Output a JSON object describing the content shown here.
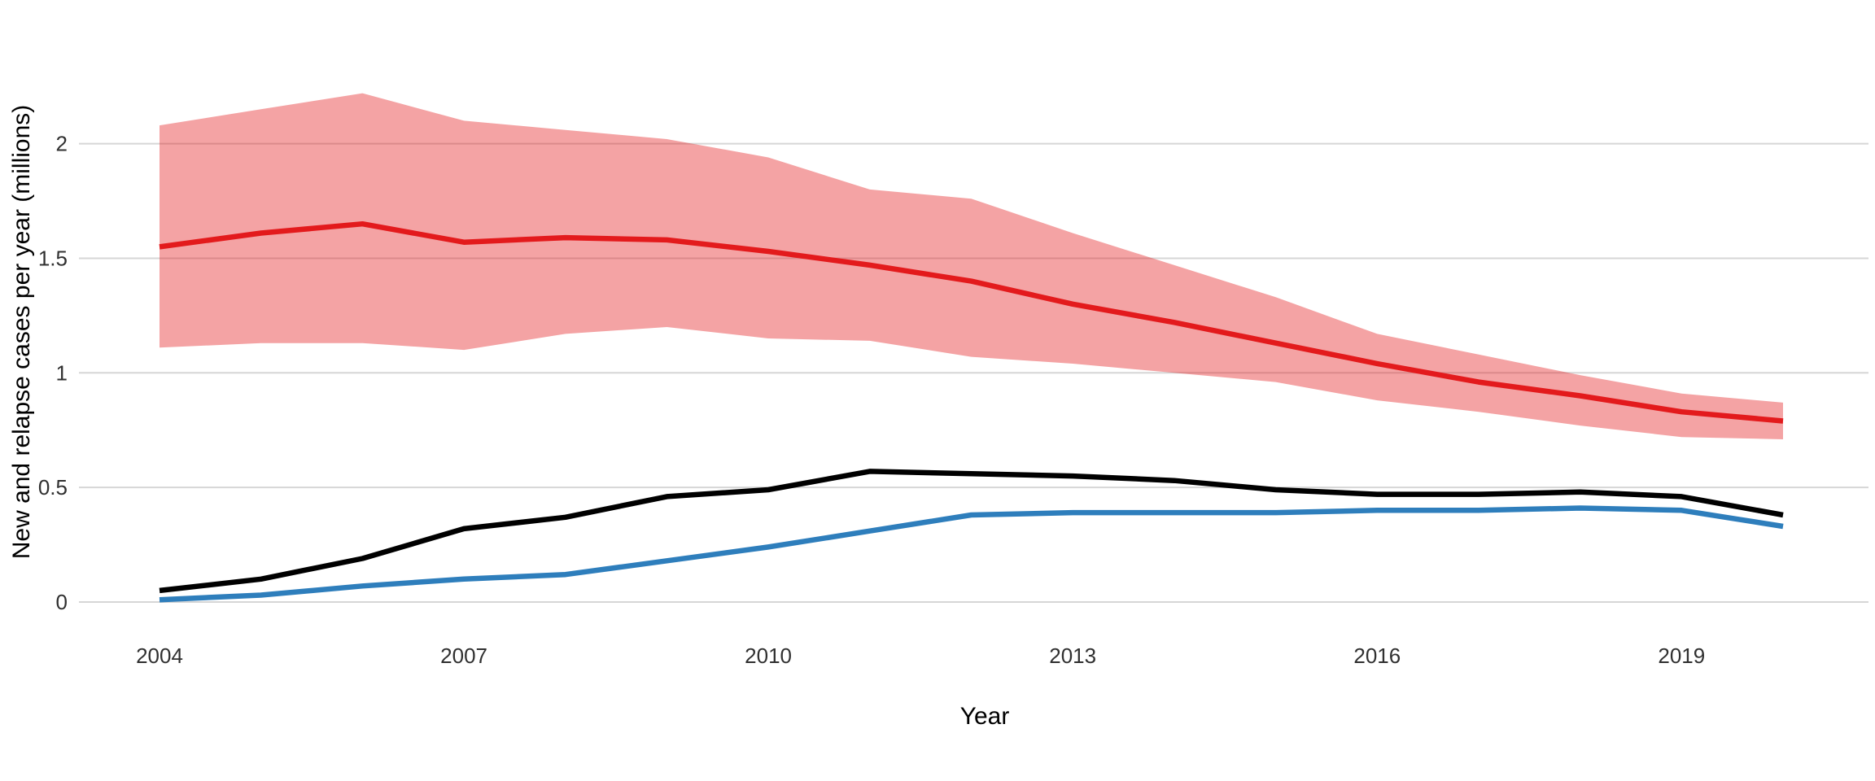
{
  "chart_data": {
    "type": "line",
    "xlabel": "Year",
    "ylabel": "New and relapse cases per year (millions)",
    "x": [
      2004,
      2005,
      2006,
      2007,
      2008,
      2009,
      2010,
      2011,
      2012,
      2013,
      2014,
      2015,
      2016,
      2017,
      2018,
      2019,
      2020
    ],
    "x_ticks": [
      2004,
      2007,
      2010,
      2013,
      2016,
      2019
    ],
    "x_tick_labels": [
      "2004",
      "2007",
      "2010",
      "2013",
      "2016",
      "2019"
    ],
    "y_ticks": [
      0,
      0.5,
      1,
      1.5,
      2
    ],
    "y_tick_labels": [
      "0",
      "0.5",
      "1",
      "1.5",
      "2"
    ],
    "xlim": [
      2003.2,
      2020.85
    ],
    "ylim": [
      0,
      2.35
    ],
    "grid": "horizontal gridlines only, light gray, no axis lines, no tick marks",
    "legend": "none",
    "series": [
      {
        "id": "red-line-with-ci-band",
        "color": "#E31A1C",
        "band_color": "#E31A1C",
        "band_opacity": 0.4,
        "values": [
          1.55,
          1.61,
          1.65,
          1.57,
          1.59,
          1.58,
          1.53,
          1.47,
          1.4,
          1.3,
          1.22,
          1.13,
          1.04,
          0.96,
          0.9,
          0.83,
          0.79
        ],
        "band_upper": [
          2.08,
          2.15,
          2.22,
          2.1,
          2.06,
          2.02,
          1.94,
          1.8,
          1.76,
          1.61,
          1.47,
          1.33,
          1.17,
          1.08,
          0.99,
          0.91,
          0.87
        ],
        "band_lower": [
          1.11,
          1.13,
          1.13,
          1.1,
          1.17,
          1.2,
          1.15,
          1.14,
          1.07,
          1.04,
          1.0,
          0.96,
          0.88,
          0.83,
          0.77,
          0.72,
          0.71
        ]
      },
      {
        "id": "black-line",
        "color": "#000000",
        "values": [
          0.05,
          0.1,
          0.19,
          0.32,
          0.37,
          0.46,
          0.49,
          0.57,
          0.56,
          0.55,
          0.53,
          0.49,
          0.47,
          0.47,
          0.48,
          0.46,
          0.38
        ]
      },
      {
        "id": "blue-line",
        "color": "#2E7EBC",
        "values": [
          0.01,
          0.03,
          0.07,
          0.1,
          0.12,
          0.18,
          0.24,
          0.31,
          0.38,
          0.39,
          0.39,
          0.39,
          0.4,
          0.4,
          0.41,
          0.4,
          0.33
        ]
      }
    ],
    "colors": {
      "background": "#FFFFFF",
      "grid": "#D6D6D6",
      "axis_text": "#303030",
      "axis_title": "#000000"
    }
  }
}
